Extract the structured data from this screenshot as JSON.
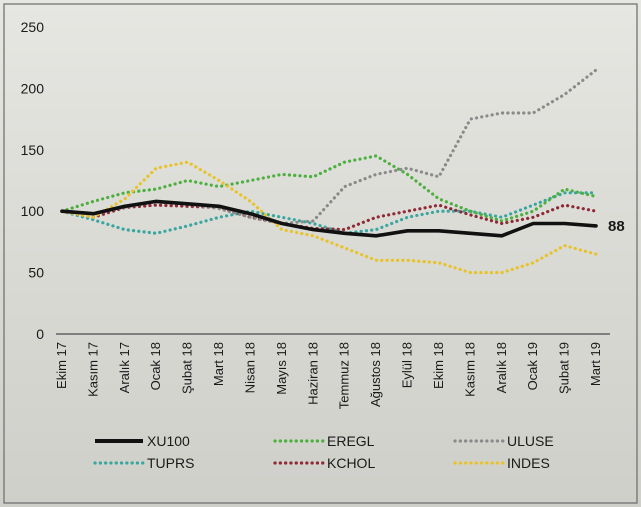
{
  "chart_data": {
    "type": "line",
    "ylim": [
      0,
      250
    ],
    "yticks": [
      0,
      50,
      100,
      150,
      200,
      250
    ],
    "categories": [
      "Ekim 17",
      "Kasım 17",
      "Aralık 17",
      "Ocak 18",
      "Şubat 18",
      "Mart 18",
      "Nisan 18",
      "Mayıs 18",
      "Haziran 18",
      "Temmuz 18",
      "Ağustos 18",
      "Eylül 18",
      "Ekim 18",
      "Kasım 18",
      "Aralık 18",
      "Ocak 19",
      "Şubat 19",
      "Mart 19"
    ],
    "end_label": "88",
    "grid": false,
    "legend_position": "bottom",
    "series": [
      {
        "name": "XU100",
        "color": "#111111",
        "style": "solid",
        "values": [
          100,
          98,
          104,
          108,
          106,
          104,
          98,
          90,
          85,
          82,
          80,
          84,
          84,
          82,
          80,
          90,
          90,
          88
        ]
      },
      {
        "name": "TUPRS",
        "color": "#3aa6a0",
        "style": "dotted",
        "values": [
          100,
          93,
          85,
          82,
          88,
          95,
          100,
          95,
          90,
          82,
          85,
          95,
          100,
          100,
          95,
          105,
          115,
          115
        ]
      },
      {
        "name": "EREGL",
        "color": "#4caf3e",
        "style": "dotted",
        "values": [
          100,
          108,
          115,
          118,
          125,
          120,
          125,
          130,
          128,
          140,
          145,
          130,
          110,
          100,
          92,
          100,
          118,
          112
        ]
      },
      {
        "name": "KCHOL",
        "color": "#8e2a35",
        "style": "dotted",
        "values": [
          100,
          95,
          103,
          105,
          104,
          103,
          95,
          90,
          86,
          85,
          95,
          100,
          105,
          97,
          90,
          95,
          105,
          100
        ]
      },
      {
        "name": "ULUSE",
        "color": "#8a8a8a",
        "style": "dotted",
        "values": [
          100,
          98,
          103,
          108,
          106,
          102,
          95,
          90,
          92,
          120,
          130,
          135,
          128,
          175,
          180,
          180,
          195,
          215
        ]
      },
      {
        "name": "INDES",
        "color": "#e8c227",
        "style": "dotted",
        "values": [
          100,
          95,
          110,
          135,
          140,
          125,
          108,
          85,
          80,
          70,
          60,
          60,
          58,
          50,
          50,
          58,
          72,
          65
        ]
      }
    ]
  }
}
